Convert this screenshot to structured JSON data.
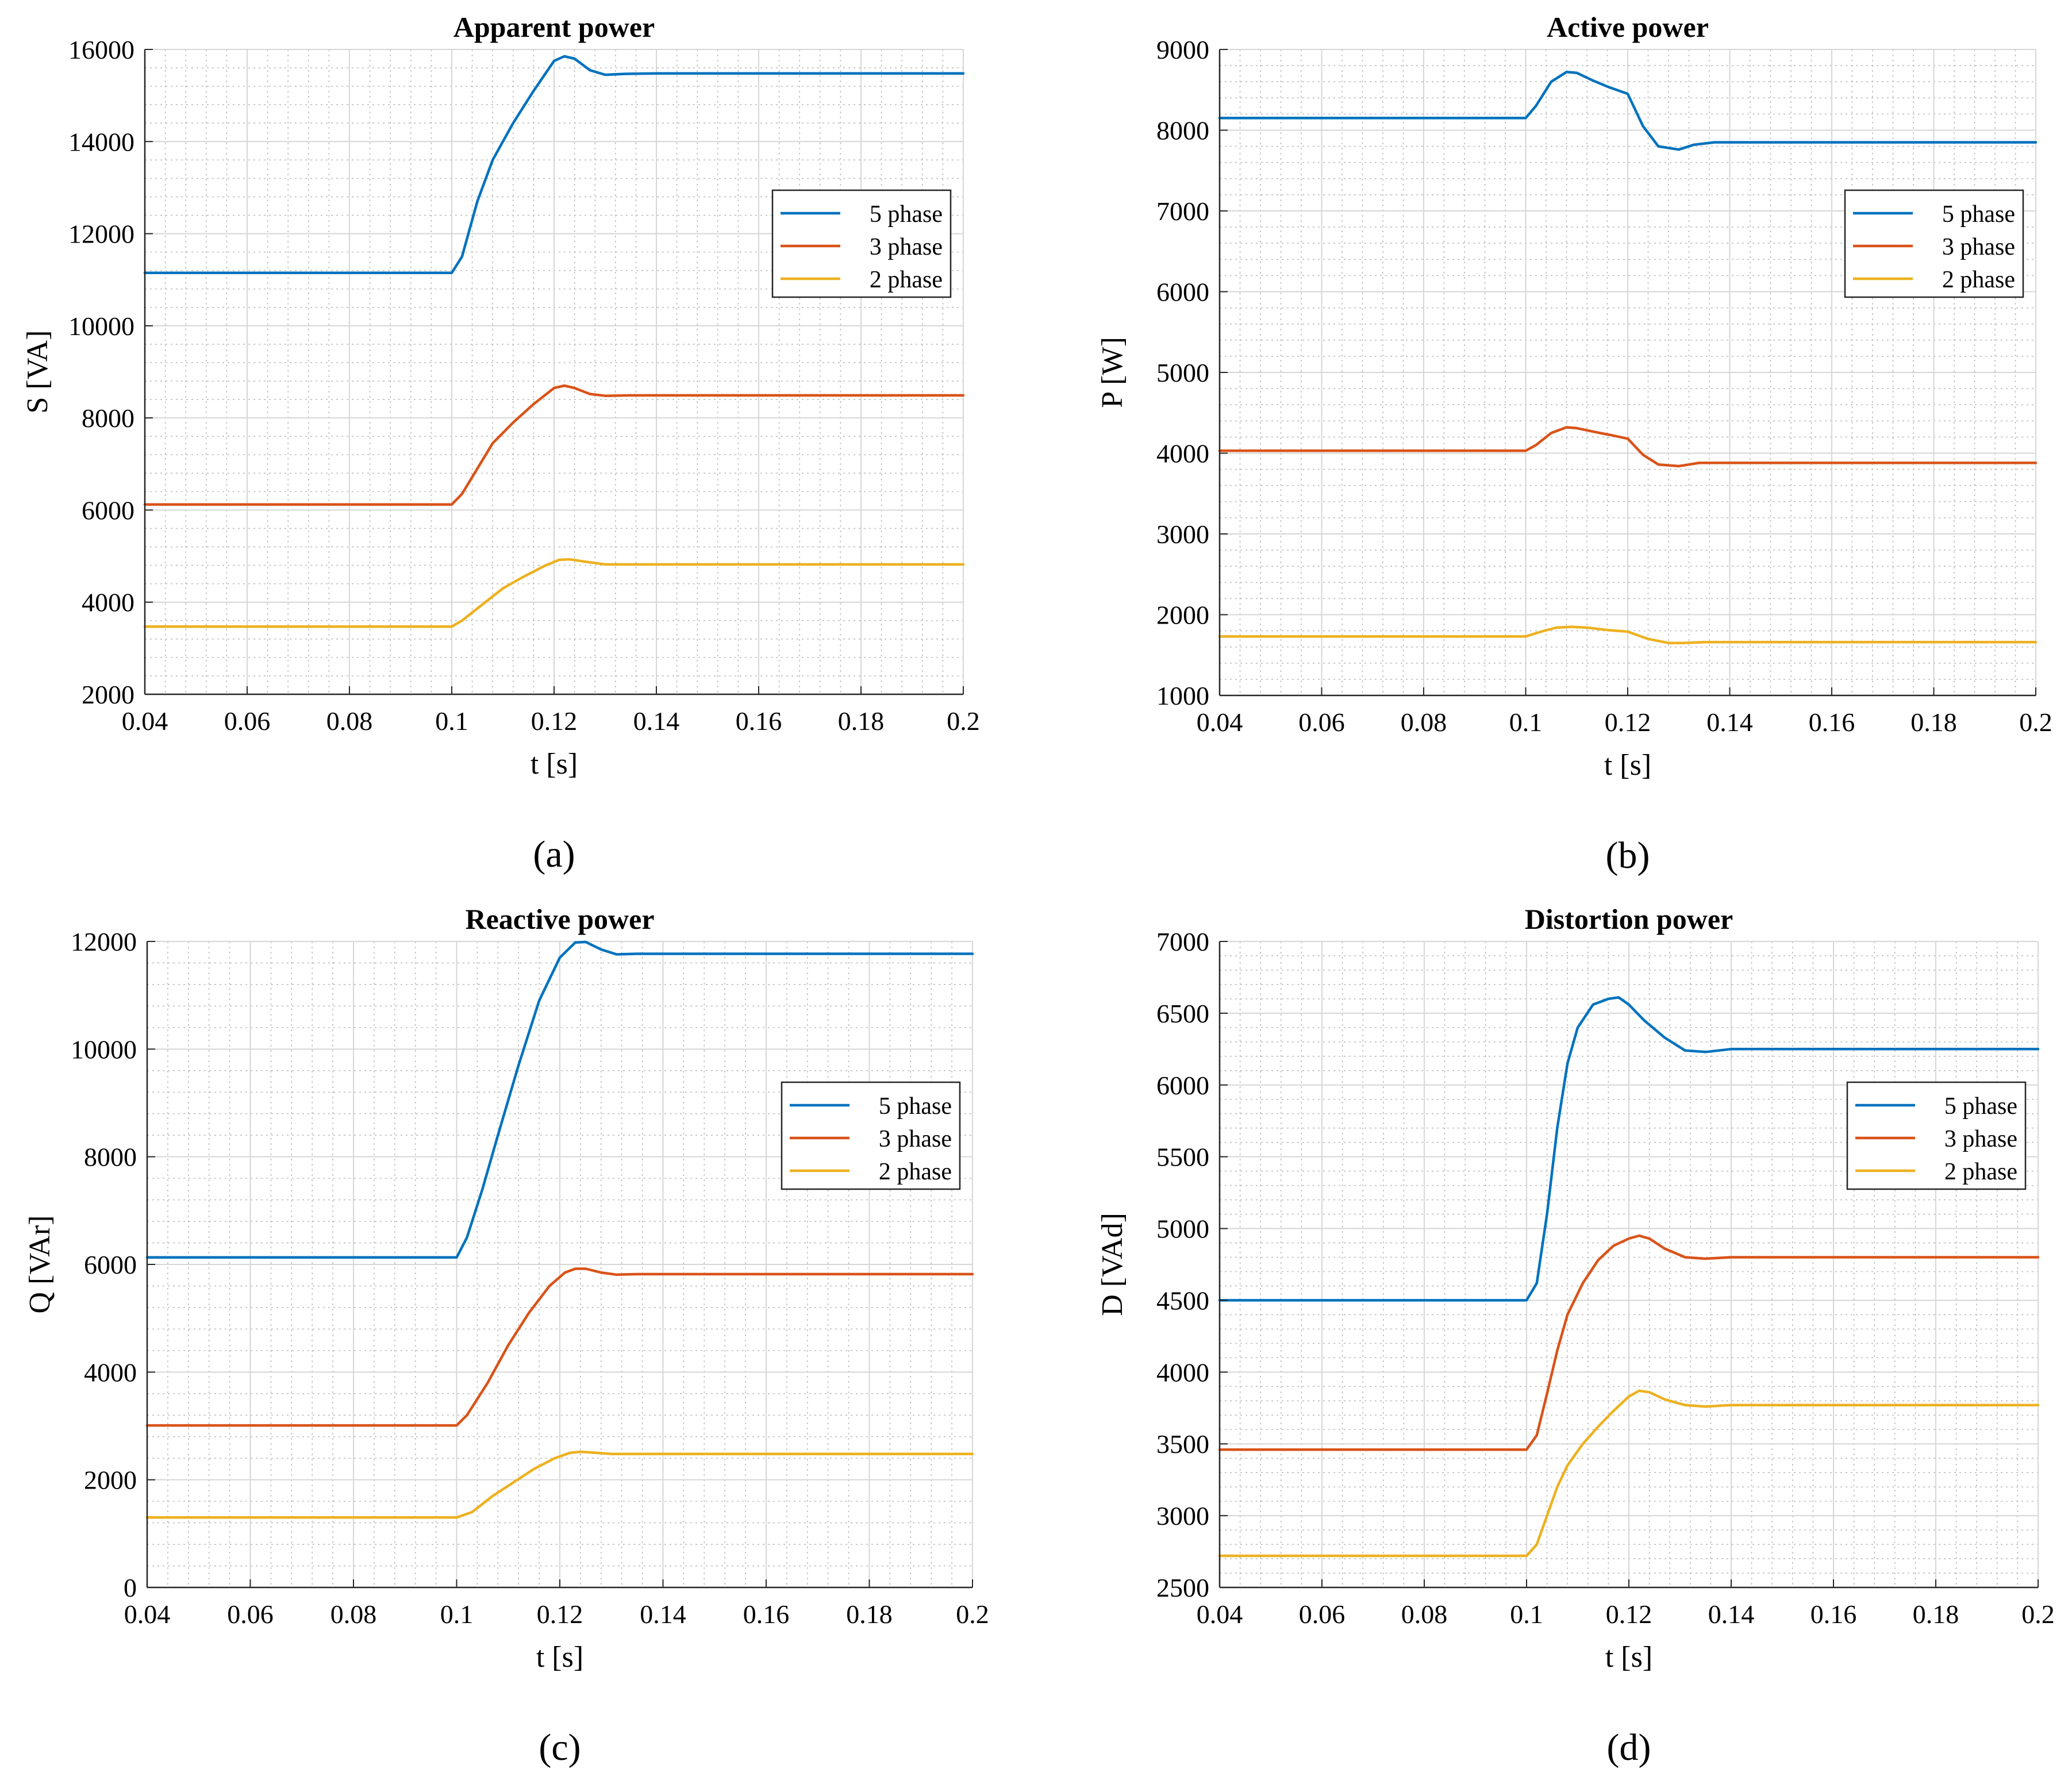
{
  "colors": {
    "5 phase": "#0072BD",
    "3 phase": "#D95319",
    "2 phase": "#EDB120"
  },
  "chart_data": [
    {
      "id": "a",
      "caption": "(a)",
      "type": "line",
      "title": "Apparent power",
      "xlabel": "t [s]",
      "ylabel": "S [VA]",
      "xlim": [
        0.04,
        0.2
      ],
      "ylim": [
        2000,
        16000
      ],
      "xticks": [
        0.04,
        0.06,
        0.08,
        0.1,
        0.12,
        0.14,
        0.16,
        0.18,
        0.2
      ],
      "xtick_labels": [
        "0.04",
        "0.06",
        "0.08",
        "0.1",
        "0.12",
        "0.14",
        "0.16",
        "0.18",
        "0.2"
      ],
      "yticks": [
        2000,
        4000,
        6000,
        8000,
        10000,
        12000,
        14000,
        16000
      ],
      "ytick_labels": [
        "2000",
        "4000",
        "6000",
        "8000",
        "10000",
        "12000",
        "14000",
        "16000"
      ],
      "grid": true,
      "minor_grid": true,
      "legend_position": "upper-right",
      "series": [
        {
          "name": "5 phase",
          "x": [
            0.04,
            0.1,
            0.102,
            0.105,
            0.108,
            0.112,
            0.116,
            0.12,
            0.122,
            0.124,
            0.127,
            0.13,
            0.134,
            0.14,
            0.2
          ],
          "y": [
            11150,
            11150,
            11500,
            12700,
            13600,
            14400,
            15100,
            15750,
            15850,
            15800,
            15550,
            15450,
            15470,
            15480,
            15480
          ]
        },
        {
          "name": "3 phase",
          "x": [
            0.04,
            0.1,
            0.102,
            0.105,
            0.108,
            0.112,
            0.116,
            0.12,
            0.122,
            0.124,
            0.127,
            0.13,
            0.135,
            0.2
          ],
          "y": [
            6120,
            6120,
            6350,
            6900,
            7450,
            7900,
            8300,
            8650,
            8700,
            8650,
            8520,
            8480,
            8490,
            8490
          ]
        },
        {
          "name": "2 phase",
          "x": [
            0.04,
            0.1,
            0.102,
            0.106,
            0.11,
            0.114,
            0.118,
            0.121,
            0.123,
            0.126,
            0.13,
            0.2
          ],
          "y": [
            3470,
            3470,
            3600,
            3950,
            4300,
            4550,
            4780,
            4920,
            4930,
            4880,
            4820,
            4820
          ]
        }
      ]
    },
    {
      "id": "b",
      "caption": "(b)",
      "type": "line",
      "title": "Active power",
      "xlabel": "t [s]",
      "ylabel": "P [W]",
      "xlim": [
        0.04,
        0.2
      ],
      "ylim": [
        1000,
        9000
      ],
      "xticks": [
        0.04,
        0.06,
        0.08,
        0.1,
        0.12,
        0.14,
        0.16,
        0.18,
        0.2
      ],
      "xtick_labels": [
        "0.04",
        "0.06",
        "0.08",
        "0.1",
        "0.12",
        "0.14",
        "0.16",
        "0.18",
        "0.2"
      ],
      "yticks": [
        1000,
        2000,
        3000,
        4000,
        5000,
        6000,
        7000,
        8000,
        9000
      ],
      "ytick_labels": [
        "1000",
        "2000",
        "3000",
        "4000",
        "5000",
        "6000",
        "7000",
        "8000",
        "9000"
      ],
      "grid": true,
      "minor_grid": true,
      "legend_position": "upper-right",
      "series": [
        {
          "name": "5 phase",
          "x": [
            0.04,
            0.1,
            0.102,
            0.105,
            0.108,
            0.11,
            0.113,
            0.116,
            0.12,
            0.123,
            0.126,
            0.13,
            0.133,
            0.137,
            0.2
          ],
          "y": [
            8150,
            8150,
            8300,
            8600,
            8720,
            8710,
            8620,
            8540,
            8450,
            8050,
            7800,
            7760,
            7820,
            7850,
            7850
          ]
        },
        {
          "name": "3 phase",
          "x": [
            0.04,
            0.1,
            0.102,
            0.105,
            0.108,
            0.11,
            0.113,
            0.117,
            0.12,
            0.123,
            0.126,
            0.13,
            0.134,
            0.2
          ],
          "y": [
            4030,
            4030,
            4100,
            4250,
            4320,
            4310,
            4270,
            4220,
            4180,
            3980,
            3860,
            3840,
            3880,
            3880
          ]
        },
        {
          "name": "2 phase",
          "x": [
            0.04,
            0.1,
            0.103,
            0.106,
            0.109,
            0.112,
            0.116,
            0.12,
            0.124,
            0.128,
            0.131,
            0.135,
            0.2
          ],
          "y": [
            1730,
            1730,
            1790,
            1840,
            1850,
            1840,
            1810,
            1790,
            1700,
            1650,
            1650,
            1660,
            1660
          ]
        }
      ]
    },
    {
      "id": "c",
      "caption": "(c)",
      "type": "line",
      "title": "Reactive power",
      "xlabel": "t [s]",
      "ylabel": "Q [VAr]",
      "xlim": [
        0.04,
        0.2
      ],
      "ylim": [
        0,
        12000
      ],
      "xticks": [
        0.04,
        0.06,
        0.08,
        0.1,
        0.12,
        0.14,
        0.16,
        0.18,
        0.2
      ],
      "xtick_labels": [
        "0.04",
        "0.06",
        "0.08",
        "0.1",
        "0.12",
        "0.14",
        "0.16",
        "0.18",
        "0.2"
      ],
      "yticks": [
        0,
        2000,
        4000,
        6000,
        8000,
        10000,
        12000
      ],
      "ytick_labels": [
        "0",
        "2000",
        "4000",
        "6000",
        "8000",
        "10000",
        "12000"
      ],
      "grid": true,
      "minor_grid": true,
      "legend_position": "upper-right",
      "series": [
        {
          "name": "5 phase",
          "x": [
            0.04,
            0.1,
            0.102,
            0.105,
            0.108,
            0.112,
            0.116,
            0.12,
            0.123,
            0.125,
            0.128,
            0.131,
            0.135,
            0.2
          ],
          "y": [
            6130,
            6130,
            6500,
            7400,
            8400,
            9700,
            10900,
            11700,
            11980,
            11990,
            11850,
            11760,
            11770,
            11770
          ]
        },
        {
          "name": "3 phase",
          "x": [
            0.04,
            0.1,
            0.102,
            0.106,
            0.11,
            0.114,
            0.118,
            0.121,
            0.123,
            0.125,
            0.128,
            0.131,
            0.135,
            0.2
          ],
          "y": [
            3010,
            3010,
            3200,
            3800,
            4500,
            5100,
            5600,
            5850,
            5920,
            5920,
            5850,
            5810,
            5820,
            5820
          ]
        },
        {
          "name": "2 phase",
          "x": [
            0.04,
            0.1,
            0.103,
            0.107,
            0.111,
            0.115,
            0.119,
            0.122,
            0.124,
            0.127,
            0.13,
            0.2
          ],
          "y": [
            1300,
            1300,
            1400,
            1700,
            1950,
            2200,
            2400,
            2500,
            2520,
            2500,
            2480,
            2480
          ]
        }
      ]
    },
    {
      "id": "d",
      "caption": "(d)",
      "type": "line",
      "title": "Distortion power",
      "xlabel": "t [s]",
      "ylabel": "D [VAd]",
      "xlim": [
        0.04,
        0.2
      ],
      "ylim": [
        2500,
        7000
      ],
      "xticks": [
        0.04,
        0.06,
        0.08,
        0.1,
        0.12,
        0.14,
        0.16,
        0.18,
        0.2
      ],
      "xtick_labels": [
        "0.04",
        "0.06",
        "0.08",
        "0.1",
        "0.12",
        "0.14",
        "0.16",
        "0.18",
        "0.2"
      ],
      "yticks": [
        2500,
        3000,
        3500,
        4000,
        4500,
        5000,
        5500,
        6000,
        6500,
        7000
      ],
      "ytick_labels": [
        "2500",
        "3000",
        "3500",
        "4000",
        "4500",
        "5000",
        "5500",
        "6000",
        "6500",
        "7000"
      ],
      "grid": true,
      "minor_grid": true,
      "legend_position": "upper-right",
      "series": [
        {
          "name": "5 phase",
          "x": [
            0.04,
            0.1,
            0.102,
            0.104,
            0.106,
            0.108,
            0.11,
            0.113,
            0.116,
            0.118,
            0.12,
            0.123,
            0.127,
            0.131,
            0.135,
            0.14,
            0.2
          ],
          "y": [
            4500,
            4500,
            4620,
            5100,
            5700,
            6150,
            6400,
            6560,
            6600,
            6610,
            6560,
            6450,
            6330,
            6240,
            6230,
            6250,
            6250
          ]
        },
        {
          "name": "3 phase",
          "x": [
            0.04,
            0.1,
            0.102,
            0.104,
            0.106,
            0.108,
            0.111,
            0.114,
            0.117,
            0.12,
            0.122,
            0.124,
            0.127,
            0.131,
            0.135,
            0.14,
            0.2
          ],
          "y": [
            3460,
            3460,
            3560,
            3850,
            4150,
            4400,
            4620,
            4780,
            4880,
            4930,
            4950,
            4930,
            4860,
            4800,
            4790,
            4800,
            4800
          ]
        },
        {
          "name": "2 phase",
          "x": [
            0.04,
            0.1,
            0.102,
            0.104,
            0.106,
            0.108,
            0.111,
            0.114,
            0.117,
            0.12,
            0.122,
            0.124,
            0.127,
            0.131,
            0.135,
            0.14,
            0.2
          ],
          "y": [
            2720,
            2720,
            2800,
            3000,
            3200,
            3350,
            3500,
            3620,
            3730,
            3830,
            3870,
            3860,
            3810,
            3770,
            3760,
            3770,
            3770
          ]
        }
      ]
    }
  ]
}
